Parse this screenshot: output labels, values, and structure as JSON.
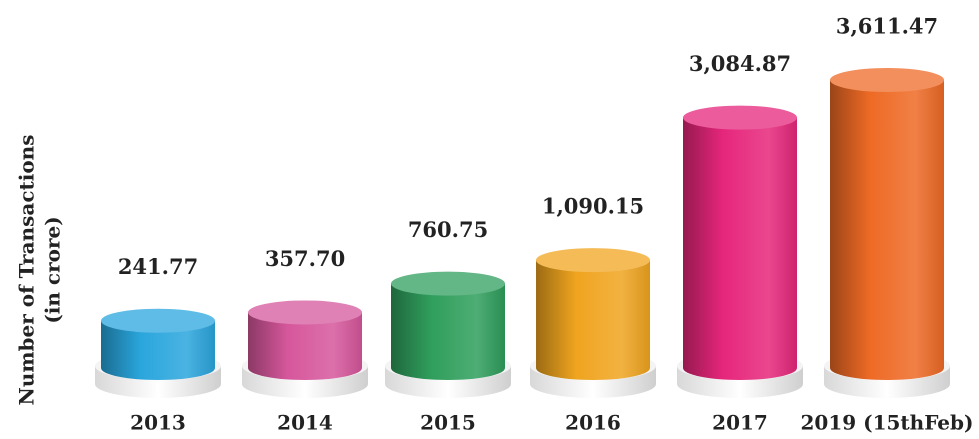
{
  "chart_data": {
    "type": "cylinder_bar",
    "ylabel": [
      "Number of Transactions",
      "(in crore)"
    ],
    "categories": [
      "2013",
      "2014",
      "2015",
      "2016",
      "2017",
      "2019 (15thFeb)"
    ],
    "values": [
      241.77,
      357.7,
      760.75,
      1090.15,
      3084.87,
      3611.47
    ],
    "value_labels": [
      "241.77",
      "357.70",
      "760.75",
      "1,090.15",
      "3,084.87",
      "3,611.47"
    ],
    "colors": [
      "#2aa6dd",
      "#d6579c",
      "#2f9e5c",
      "#f0a41f",
      "#e6267b",
      "#ee6a25"
    ]
  }
}
